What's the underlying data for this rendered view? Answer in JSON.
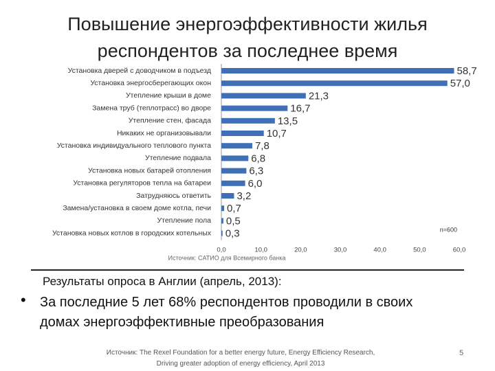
{
  "chart_data": {
    "type": "bar",
    "orientation": "horizontal",
    "title": "Повышение энергоэффективности жилья респондентов за последнее время",
    "categories": [
      "Установка дверей с доводчиком в подъезд",
      "Установка энергосберегающих окон",
      "Утепление крыши в доме",
      "Замена труб (теплотрасс) во дворе",
      "Утепление стен, фасада",
      "Никаких не организовывали",
      "Установка индивидуального теплового пункта",
      "Утепление подвала",
      "Установка новых батарей отопления",
      "Установка регуляторов тепла на батареи",
      "Затрудняюсь ответить",
      "Замена/установка в своем доме котла, печи",
      "Утепление пола",
      "Установка новых котлов в городских котельных"
    ],
    "values": [
      58.7,
      57.0,
      21.3,
      16.7,
      13.5,
      10.7,
      7.8,
      6.8,
      6.3,
      6.0,
      3.2,
      0.7,
      0.5,
      0.3
    ],
    "value_labels": [
      "58,7",
      "57,0",
      "21,3",
      "16,7",
      "13,5",
      "10,7",
      "7,8",
      "6,8",
      "6,3",
      "6,0",
      "3,2",
      "0,7",
      "0,5",
      "0,3"
    ],
    "color": "#3f6fb5",
    "xlim": [
      0,
      60
    ],
    "xticks": [
      {
        "value": 0,
        "label": "0,0"
      },
      {
        "value": 10,
        "label": "10,0"
      },
      {
        "value": 20,
        "label": "20,0"
      },
      {
        "value": 30,
        "label": "30,0"
      },
      {
        "value": 40,
        "label": "40,0"
      },
      {
        "value": 50,
        "label": "50,0"
      },
      {
        "value": 60,
        "label": "60,0"
      }
    ],
    "grid": false,
    "annotation": "n=600",
    "source": "Источник: CATИO для Всемирного банка"
  },
  "slide": {
    "subheading": "Результаты опроса в Англии (апрель, 2013):",
    "bullet": "За последние 5 лет 68% респондентов проводили в своих домах энергоэффективные преобразования",
    "footer_source": "Источник: The Rexel Foundation for a better energy future, Energy Efficiency Research, Driving greater adoption of energy efficiency, April 2013",
    "page_number": "5"
  }
}
